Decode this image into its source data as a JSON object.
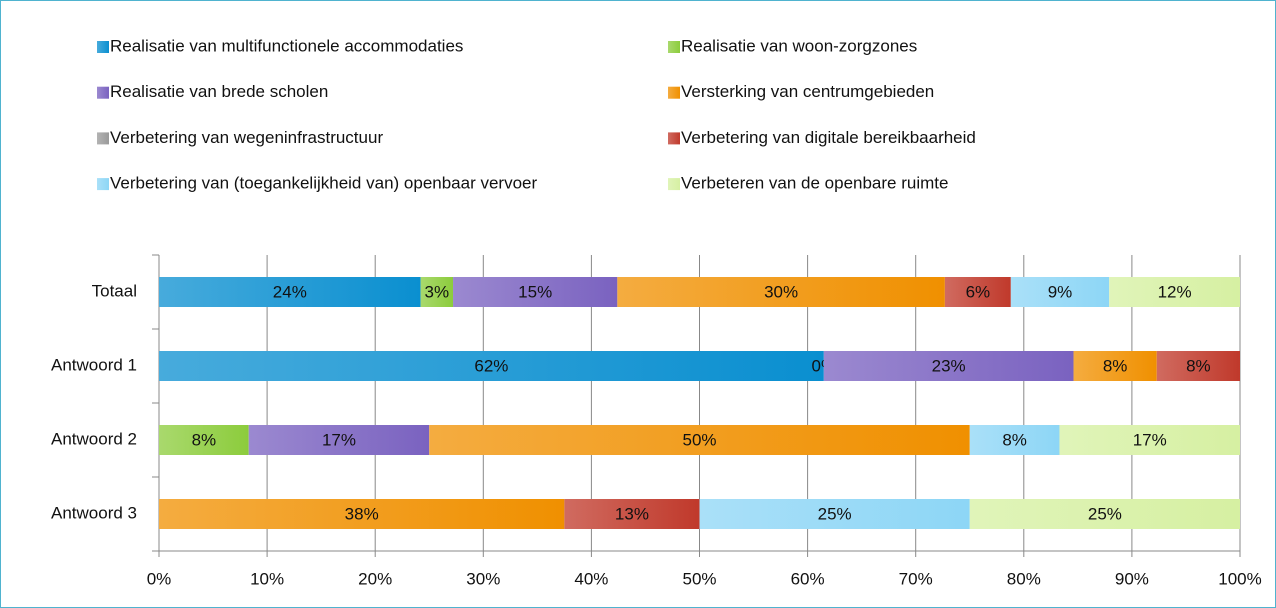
{
  "chart_data": {
    "type": "stacked-bar-horizontal",
    "categories": [
      "Totaal",
      "Antwoord 1",
      "Antwoord 2",
      "Antwoord 3"
    ],
    "series": [
      {
        "name": "Realisatie van multifunctionele accommodaties",
        "color": "#0a8fd0",
        "values": [
          24.2,
          61.5,
          null,
          null
        ],
        "value_labels": [
          "24%",
          "62%",
          null,
          null
        ]
      },
      {
        "name": "Realisatie van woon-zorgzones",
        "color": "#8ccc3c",
        "values": [
          3.0,
          0,
          8.3,
          null
        ],
        "value_labels": [
          "3%",
          "0%",
          "8%",
          null
        ]
      },
      {
        "name": "Realisatie van brede scholen",
        "color": "#7a62c0",
        "values": [
          15.2,
          23.1,
          16.7,
          null
        ],
        "value_labels": [
          "15%",
          "23%",
          "17%",
          null
        ]
      },
      {
        "name": "Versterking van centrumgebieden",
        "color": "#f09000",
        "values": [
          30.3,
          7.7,
          50,
          37.5
        ],
        "value_labels": [
          "30%",
          "8%",
          "50%",
          "38%"
        ]
      },
      {
        "name": "Verbetering van wegeninfrastructuur",
        "color": "#9a9a9a",
        "values": [
          null,
          null,
          null,
          null
        ],
        "value_labels": [
          null,
          null,
          null,
          null
        ]
      },
      {
        "name": "Verbetering van digitale bereikbaarheid",
        "color": "#c0392b",
        "values": [
          6.1,
          7.7,
          null,
          12.5
        ],
        "value_labels": [
          "6%",
          "8%",
          null,
          "13%"
        ]
      },
      {
        "name": "Verbetering van (toegankelijkheid van) openbaar vervoer",
        "color": "#8dd6f6",
        "values": [
          9.1,
          null,
          8.3,
          25
        ],
        "value_labels": [
          "9%",
          null,
          "8%",
          "25%"
        ]
      },
      {
        "name": "Verbeteren van de openbare ruimte",
        "color": "#d6f0a2",
        "values": [
          12.1,
          null,
          16.7,
          25
        ],
        "value_labels": [
          "12%",
          null,
          "17%",
          "25%"
        ]
      }
    ],
    "xlim": [
      0,
      100
    ],
    "xticks": [
      {
        "value": 0,
        "label": "0%"
      },
      {
        "value": 10,
        "label": "10%"
      },
      {
        "value": 20,
        "label": "20%"
      },
      {
        "value": 30,
        "label": "30%"
      },
      {
        "value": 40,
        "label": "40%"
      },
      {
        "value": 50,
        "label": "50%"
      },
      {
        "value": 60,
        "label": "60%"
      },
      {
        "value": 70,
        "label": "70%"
      },
      {
        "value": 80,
        "label": "80%"
      },
      {
        "value": 90,
        "label": "90%"
      },
      {
        "value": 100,
        "label": "100%"
      }
    ],
    "grid": true,
    "legend": "top"
  }
}
